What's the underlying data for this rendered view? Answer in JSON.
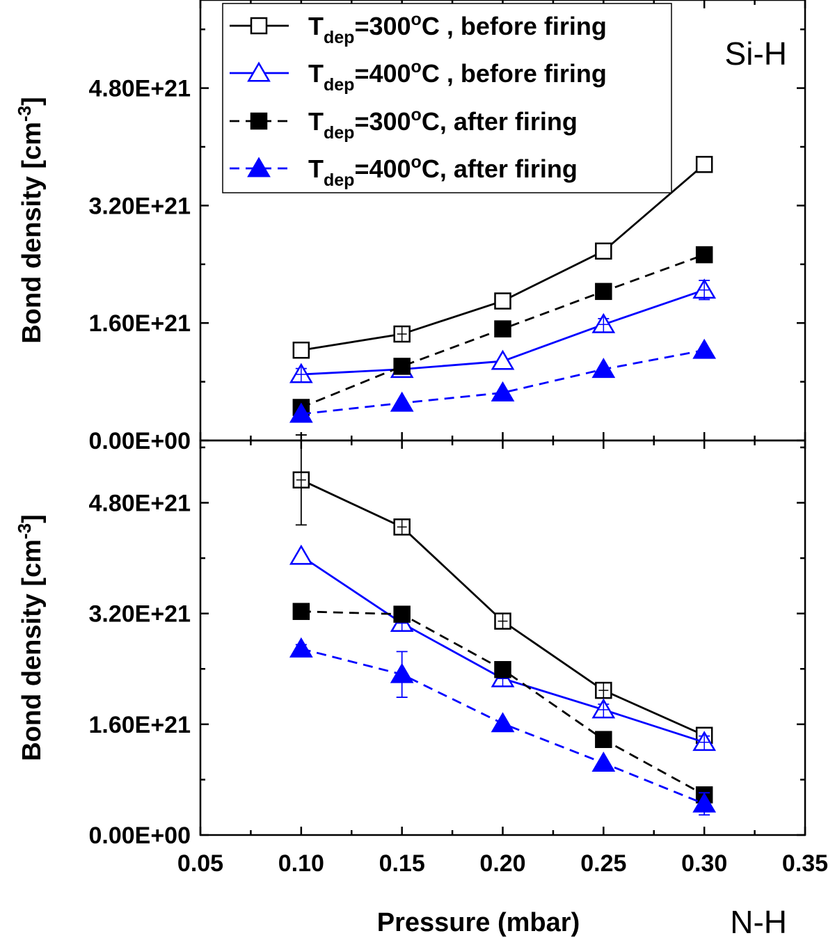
{
  "chart_data": [
    {
      "type": "line",
      "panel_label": "Si-H",
      "ylabel": "Bond density [cm",
      "ylabel_sup": "-3",
      "ylabel_suffix": "]",
      "xlim": [
        0.05,
        0.35
      ],
      "ylim": [
        0,
        6000000000000000000000
      ],
      "yticks": [
        0,
        1600000000000000000000,
        3200000000000000000000,
        4800000000000000000000
      ],
      "ytick_labels": [
        "0.00E+00",
        "1.60E+21",
        "3.20E+21",
        "4.80E+21"
      ],
      "x": [
        0.1,
        0.15,
        0.2,
        0.25,
        0.3
      ],
      "legend": [
        {
          "base": "T",
          "sub": "dep",
          "main": "=300",
          "sup": "o",
          "tail": "C , before firing"
        },
        {
          "base": "T",
          "sub": "dep",
          "main": "=400",
          "sup": "o",
          "tail": "C , before firing"
        },
        {
          "base": "T",
          "sub": "dep",
          "main": "=300",
          "sup": "o",
          "tail": "C, after firing"
        },
        {
          "base": "T",
          "sub": "dep",
          "main": "=400",
          "sup": "o",
          "tail": "C, after firing"
        }
      ],
      "series": [
        {
          "name": "Tdep=300oC , before firing",
          "color": "#000000",
          "marker": "square-open",
          "dash": "solid",
          "values": [
            1230000000000000000000,
            1450000000000000000000,
            1900000000000000000000,
            2580000000000000000000,
            3760000000000000000000
          ],
          "errors": [
            0,
            50000000000000000000,
            0,
            0,
            0
          ]
        },
        {
          "name": "Tdep=400oC , before firing",
          "color": "#0000ff",
          "marker": "triangle-open",
          "dash": "solid",
          "values": [
            900000000000000000000,
            970000000000000000000,
            1080000000000000000000,
            1580000000000000000000,
            2050000000000000000000
          ],
          "errors": [
            80000000000000000000,
            0,
            0,
            80000000000000000000,
            130000000000000000000
          ]
        },
        {
          "name": "Tdep=300oC, after firing",
          "color": "#000000",
          "marker": "square-filled",
          "dash": "dashed",
          "values": [
            450000000000000000000,
            1010000000000000000000,
            1520000000000000000000,
            2030000000000000000000,
            2530000000000000000000
          ],
          "errors": [
            0,
            0,
            0,
            0,
            0
          ]
        },
        {
          "name": "Tdep=400oC, after firing",
          "color": "#0000ff",
          "marker": "triangle-filled",
          "dash": "dashed",
          "values": [
            360000000000000000000,
            510000000000000000000,
            650000000000000000000,
            970000000000000000000,
            1230000000000000000000
          ],
          "errors": [
            0,
            0,
            0,
            0,
            0
          ]
        }
      ]
    },
    {
      "type": "line",
      "panel_label": "N-H",
      "ylabel": "Bond density [cm",
      "ylabel_sup": "-3",
      "ylabel_suffix": "]",
      "xlabel": "Pressure (mbar)",
      "xlim": [
        0.05,
        0.35
      ],
      "xticks": [
        0.05,
        0.1,
        0.15,
        0.2,
        0.25,
        0.3,
        0.35
      ],
      "xtick_labels": [
        "0.05",
        "0.10",
        "0.15",
        "0.20",
        "0.25",
        "0.30",
        "0.35"
      ],
      "ylim": [
        0,
        5700000000000000000000
      ],
      "yticks": [
        0,
        1600000000000000000000,
        3200000000000000000000,
        4800000000000000000000
      ],
      "ytick_labels": [
        "0.00E+00",
        "1.60E+21",
        "3.20E+21",
        "4.80E+21"
      ],
      "x": [
        0.1,
        0.15,
        0.2,
        0.25,
        0.3
      ],
      "series": [
        {
          "name": "Tdep=300oC , before firing",
          "color": "#000000",
          "marker": "square-open",
          "dash": "solid",
          "values": [
            5130000000000000000000,
            4450000000000000000000,
            3090000000000000000000,
            2090000000000000000000,
            1440000000000000000000
          ],
          "errors": [
            650000000000000000000,
            80000000000000000000,
            80000000000000000000,
            60000000000000000000,
            0
          ]
        },
        {
          "name": "Tdep=400oC , before firing",
          "color": "#0000ff",
          "marker": "triangle-open",
          "dash": "solid",
          "values": [
            4030000000000000000000,
            3060000000000000000000,
            2260000000000000000000,
            1810000000000000000000,
            1340000000000000000000
          ],
          "errors": [
            0,
            110000000000000000000,
            60000000000000000000,
            80000000000000000000,
            90000000000000000000
          ]
        },
        {
          "name": "Tdep=300oC, after firing",
          "color": "#000000",
          "marker": "square-filled",
          "dash": "dashed",
          "values": [
            3230000000000000000000,
            3190000000000000000000,
            2390000000000000000000,
            1380000000000000000000,
            580000000000000000000
          ],
          "errors": [
            0,
            0,
            0,
            0,
            0
          ]
        },
        {
          "name": "Tdep=400oC, after firing",
          "color": "#0000ff",
          "marker": "triangle-filled",
          "dash": "dashed",
          "values": [
            2690000000000000000000,
            2320000000000000000000,
            1610000000000000000000,
            1040000000000000000000,
            450000000000000000000
          ],
          "errors": [
            60000000000000000000,
            330000000000000000000,
            0,
            0,
            160000000000000000000
          ]
        }
      ]
    }
  ]
}
